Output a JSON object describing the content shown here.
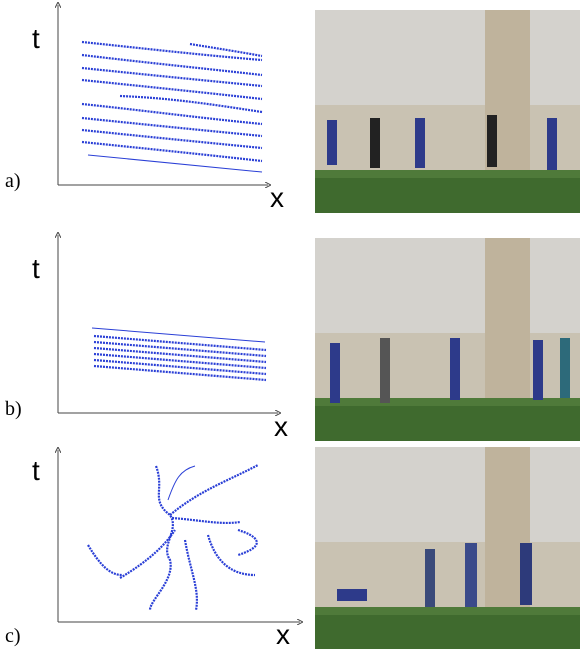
{
  "panels": [
    {
      "label": "a)",
      "y_axis": "t",
      "x_axis": "x"
    },
    {
      "label": "b)",
      "y_axis": "t",
      "x_axis": "x"
    },
    {
      "label": "c)",
      "y_axis": "t",
      "x_axis": "x"
    }
  ]
}
